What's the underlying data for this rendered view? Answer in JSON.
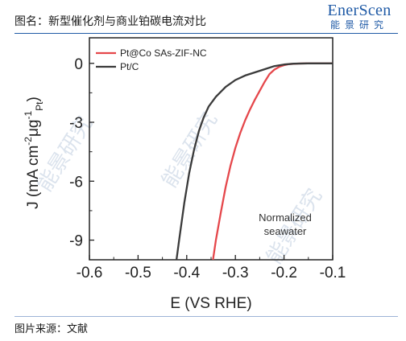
{
  "header": {
    "caption": "图名：新型催化剂与商业铂碳电流对比",
    "brand_en": "EnerScen",
    "brand_cn": "能景研究"
  },
  "footer": {
    "source": "图片来源：文献"
  },
  "watermark": "能景研究",
  "chart_data": {
    "type": "line",
    "title": "",
    "xlabel": "E (VS RHE)",
    "ylabel_main": "J (mA cm",
    "ylabel_sup1": "-2",
    "ylabel_mid": "μg",
    "ylabel_sup2": "-1",
    "ylabel_sub": "Pt",
    "ylabel_close": ")",
    "xlim": [
      -0.6,
      -0.1
    ],
    "ylim": [
      -10.0,
      1.3
    ],
    "x_ticks": [
      -0.6,
      -0.5,
      -0.4,
      -0.3,
      -0.2,
      -0.1
    ],
    "x_tick_labels": [
      "-0.6",
      "-0.5",
      "-0.4",
      "-0.3",
      "-0.2",
      "-0.1"
    ],
    "y_ticks": [
      0,
      -3,
      -6,
      -9
    ],
    "y_tick_labels": [
      "0",
      "-3",
      "-6",
      "-9"
    ],
    "legend_position": "top-left",
    "annotation_lines": [
      "Normalized",
      "seawater"
    ],
    "series": [
      {
        "name": "Pt@Co SAs-ZIF-NC",
        "color": "#e5474b",
        "points": [
          [
            -0.346,
            -10.0
          ],
          [
            -0.34,
            -9.0
          ],
          [
            -0.33,
            -7.6
          ],
          [
            -0.32,
            -6.3
          ],
          [
            -0.31,
            -5.2
          ],
          [
            -0.3,
            -4.3
          ],
          [
            -0.29,
            -3.55
          ],
          [
            -0.28,
            -2.9
          ],
          [
            -0.27,
            -2.35
          ],
          [
            -0.26,
            -1.85
          ],
          [
            -0.25,
            -1.4
          ],
          [
            -0.24,
            -0.95
          ],
          [
            -0.23,
            -0.55
          ],
          [
            -0.22,
            -0.32
          ],
          [
            -0.21,
            -0.18
          ],
          [
            -0.2,
            -0.09
          ],
          [
            -0.19,
            -0.04
          ],
          [
            -0.17,
            -0.01
          ],
          [
            -0.15,
            0.0
          ],
          [
            -0.1,
            0.0
          ]
        ]
      },
      {
        "name": "Pt/C",
        "color": "#3a3a3a",
        "points": [
          [
            -0.421,
            -10.0
          ],
          [
            -0.415,
            -8.9
          ],
          [
            -0.405,
            -7.1
          ],
          [
            -0.395,
            -5.6
          ],
          [
            -0.385,
            -4.4
          ],
          [
            -0.375,
            -3.45
          ],
          [
            -0.365,
            -2.75
          ],
          [
            -0.355,
            -2.2
          ],
          [
            -0.34,
            -1.7
          ],
          [
            -0.32,
            -1.2
          ],
          [
            -0.3,
            -0.85
          ],
          [
            -0.28,
            -0.62
          ],
          [
            -0.26,
            -0.46
          ],
          [
            -0.24,
            -0.3
          ],
          [
            -0.22,
            -0.14
          ],
          [
            -0.2,
            -0.06
          ],
          [
            -0.18,
            -0.02
          ],
          [
            -0.15,
            0.0
          ],
          [
            -0.1,
            0.0
          ]
        ]
      }
    ]
  }
}
